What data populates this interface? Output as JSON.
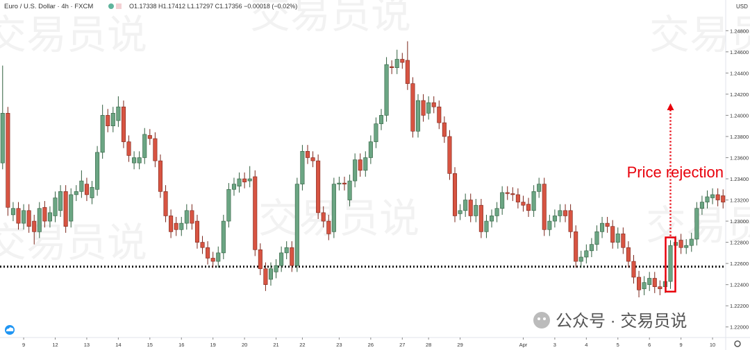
{
  "chart_data": {
    "type": "candlestick",
    "title": "Euro / U.S. Dollar · 4h · FXCM",
    "legend_ohlc": "O1.17338 H1.17412 L1.17297 C1.17356 −0.00018 (−0.02%)",
    "axis_currency": "USD",
    "watermark": "交易员说",
    "footer": "公众号 · 交易员说",
    "up_color": "#6ba583",
    "down_color": "#d75442",
    "xlim": [
      -0.5,
      137.5
    ],
    "xticks": [
      {
        "value": 4,
        "label": "9"
      },
      {
        "value": 10,
        "label": "12"
      },
      {
        "value": 16,
        "label": "13"
      },
      {
        "value": 22,
        "label": "14"
      },
      {
        "value": 28,
        "label": "15"
      },
      {
        "value": 34,
        "label": "16"
      },
      {
        "value": 40,
        "label": "19"
      },
      {
        "value": 46,
        "label": "20"
      },
      {
        "value": 52,
        "label": "21"
      },
      {
        "value": 57,
        "label": "22"
      },
      {
        "value": 64,
        "label": "23"
      },
      {
        "value": 70,
        "label": "26"
      },
      {
        "value": 76,
        "label": "27"
      },
      {
        "value": 81,
        "label": "28"
      },
      {
        "value": 87,
        "label": "29"
      },
      {
        "value": 99,
        "label": "Apr"
      },
      {
        "value": 105,
        "label": "3"
      },
      {
        "value": 111,
        "label": "4"
      },
      {
        "value": 117,
        "label": "5"
      },
      {
        "value": 123,
        "label": "6"
      },
      {
        "value": 129,
        "label": "9"
      },
      {
        "value": 135,
        "label": "10"
      }
    ],
    "ylim": [
      1.219,
      1.2509
    ],
    "yticks": [
      {
        "value": 1.248,
        "label": "1.24800"
      },
      {
        "value": 1.246,
        "label": "1.24600"
      },
      {
        "value": 1.244,
        "label": "1.24400"
      },
      {
        "value": 1.242,
        "label": "1.24200"
      },
      {
        "value": 1.24,
        "label": "1.24000"
      },
      {
        "value": 1.238,
        "label": "1.23800"
      },
      {
        "value": 1.236,
        "label": "1.23600"
      },
      {
        "value": 1.234,
        "label": "1.23400"
      },
      {
        "value": 1.232,
        "label": "1.23200"
      },
      {
        "value": 1.23,
        "label": "1.23000"
      },
      {
        "value": 1.228,
        "label": "1.22800"
      },
      {
        "value": 1.226,
        "label": "1.22600"
      },
      {
        "value": 1.224,
        "label": "1.22400"
      },
      {
        "value": 1.222,
        "label": "1.22200"
      },
      {
        "value": 1.22,
        "label": "1.22000"
      }
    ],
    "support_level": 1.2257,
    "annotation": {
      "text": "Price rejection",
      "x": 127
    },
    "open": [
      1.2355,
      1.2402,
      1.2306,
      1.2312,
      1.2298,
      1.231,
      1.23,
      1.229,
      1.2313,
      1.23,
      1.2305,
      1.231,
      1.2328,
      1.23,
      1.2325,
      1.2328,
      1.2335,
      1.2322,
      1.233,
      1.2365,
      1.24,
      1.239,
      1.2395,
      1.2408,
      1.2375,
      1.2355,
      1.2355,
      1.236,
      1.2381,
      1.2378,
      1.2357,
      1.2328,
      1.2305,
      1.2298,
      1.2292,
      1.2298,
      1.231,
      1.23,
      1.228,
      1.2275,
      1.2265,
      1.2262,
      1.227,
      1.23,
      1.233,
      1.2333,
      1.234,
      1.2338,
      1.2342,
      1.2273,
      1.2255,
      1.2245,
      1.2252,
      1.2258,
      1.227,
      1.2275,
      1.2258,
      1.2335,
      1.2366,
      1.236,
      1.2357,
      1.2308,
      1.23,
      1.229,
      1.2335,
      1.2336,
      1.232,
      1.2338,
      1.2358,
      1.2348,
      1.236,
      1.2375,
      1.2392,
      1.24,
      1.2446,
      1.2445,
      1.2453,
      1.2452,
      1.243,
      1.2385,
      1.2414,
      1.2402,
      1.2412,
      1.2408,
      1.2393,
      1.238,
      1.2345,
      1.2307,
      1.231,
      1.232,
      1.2305,
      1.2315,
      1.229,
      1.23,
      1.2305,
      1.2312,
      1.2327,
      1.2326,
      1.2325,
      1.2318,
      1.2316,
      1.231,
      1.2328,
      1.2335,
      1.2292,
      1.23,
      1.2305,
      1.231,
      1.231,
      1.229,
      1.2262,
      1.2266,
      1.2272,
      1.2278,
      1.229,
      1.2298,
      1.2295,
      1.228,
      1.2288,
      1.2275,
      1.2262,
      1.2247,
      1.2236,
      1.224,
      1.2246,
      1.2238,
      1.2238,
      1.2243,
      1.2277,
      1.2282,
      1.2275,
      1.2277,
      1.2283,
      1.2312,
      1.2318,
      1.2322,
      1.2325,
      1.2324
    ],
    "high": [
      1.2447,
      1.2408,
      1.2318,
      1.2318,
      1.2316,
      1.2316,
      1.2306,
      1.2318,
      1.2319,
      1.2314,
      1.2328,
      1.2334,
      1.2334,
      1.2331,
      1.2334,
      1.2348,
      1.2341,
      1.2338,
      1.2371,
      1.241,
      1.2406,
      1.2408,
      1.2418,
      1.2414,
      1.2381,
      1.2366,
      1.2366,
      1.2388,
      1.2387,
      1.2384,
      1.2363,
      1.2334,
      1.2311,
      1.2304,
      1.2304,
      1.2316,
      1.2316,
      1.2306,
      1.2286,
      1.2281,
      1.2271,
      1.2276,
      1.2306,
      1.2336,
      1.2341,
      1.2346,
      1.2346,
      1.2352,
      1.2348,
      1.2279,
      1.2261,
      1.2261,
      1.2264,
      1.2276,
      1.2281,
      1.2281,
      1.2341,
      1.2372,
      1.2372,
      1.2366,
      1.2363,
      1.2314,
      1.2306,
      1.2341,
      1.2342,
      1.2342,
      1.2344,
      1.2364,
      1.2364,
      1.2366,
      1.2381,
      1.2398,
      1.2406,
      1.2455,
      1.2452,
      1.2462,
      1.2459,
      1.247,
      1.2436,
      1.242,
      1.242,
      1.2418,
      1.2418,
      1.2414,
      1.2399,
      1.2386,
      1.2351,
      1.2316,
      1.2326,
      1.2326,
      1.2321,
      1.2321,
      1.2306,
      1.2311,
      1.2318,
      1.2333,
      1.2333,
      1.2332,
      1.2331,
      1.2324,
      1.2322,
      1.2334,
      1.2341,
      1.2341,
      1.2306,
      1.2311,
      1.2316,
      1.2316,
      1.2316,
      1.2296,
      1.2272,
      1.2278,
      1.2284,
      1.2296,
      1.2304,
      1.2304,
      1.2301,
      1.2294,
      1.2294,
      1.2281,
      1.2268,
      1.2253,
      1.2248,
      1.2252,
      1.2252,
      1.2244,
      1.2249,
      1.2282,
      1.2286,
      1.2288,
      1.2283,
      1.2289,
      1.2318,
      1.2324,
      1.2329,
      1.2331,
      1.2331,
      1.233
    ],
    "low": [
      1.2349,
      1.2305,
      1.23,
      1.2292,
      1.2292,
      1.2289,
      1.2278,
      1.2284,
      1.2294,
      1.2294,
      1.2299,
      1.2304,
      1.2289,
      1.2294,
      1.2319,
      1.2322,
      1.2319,
      1.2316,
      1.2324,
      1.2359,
      1.2384,
      1.2384,
      1.2389,
      1.2369,
      1.2356,
      1.2349,
      1.2349,
      1.2354,
      1.2372,
      1.2351,
      1.2322,
      1.2299,
      1.2284,
      1.2286,
      1.2286,
      1.2292,
      1.2292,
      1.2274,
      1.2269,
      1.2259,
      1.2256,
      1.2256,
      1.2264,
      1.2294,
      1.2324,
      1.2327,
      1.2331,
      1.2332,
      1.2267,
      1.2249,
      1.2234,
      1.2239,
      1.2246,
      1.2252,
      1.2264,
      1.2252,
      1.2252,
      1.2329,
      1.2354,
      1.2351,
      1.2302,
      1.2294,
      1.2282,
      1.2284,
      1.2329,
      1.2329,
      1.2314,
      1.2332,
      1.2342,
      1.2342,
      1.2354,
      1.2369,
      1.2386,
      1.2394,
      1.2439,
      1.2439,
      1.2444,
      1.2424,
      1.2379,
      1.2379,
      1.2394,
      1.2396,
      1.2402,
      1.2387,
      1.2374,
      1.2339,
      1.2299,
      1.2301,
      1.2304,
      1.2299,
      1.2299,
      1.2284,
      1.2284,
      1.2294,
      1.2299,
      1.2306,
      1.232,
      1.2319,
      1.2312,
      1.2309,
      1.2304,
      1.2304,
      1.2322,
      1.2286,
      1.2286,
      1.2294,
      1.2299,
      1.2299,
      1.2284,
      1.2256,
      1.2256,
      1.226,
      1.2266,
      1.2272,
      1.2284,
      1.2289,
      1.2274,
      1.2274,
      1.2269,
      1.2256,
      1.2241,
      1.2228,
      1.223,
      1.2234,
      1.2232,
      1.223,
      1.2232,
      1.2236,
      1.2271,
      1.2269,
      1.2269,
      1.2271,
      1.2277,
      1.2306,
      1.2312,
      1.2316,
      1.2314,
      1.2312
    ],
    "close": [
      1.2402,
      1.2313,
      1.2312,
      1.2298,
      1.231,
      1.2295,
      1.229,
      1.2312,
      1.23,
      1.2308,
      1.2322,
      1.2328,
      1.2295,
      1.2325,
      1.2328,
      1.2338,
      1.2325,
      1.2332,
      1.2365,
      1.24,
      1.239,
      1.2402,
      1.2408,
      1.2375,
      1.2362,
      1.236,
      1.236,
      1.2382,
      1.2378,
      1.2357,
      1.2328,
      1.2305,
      1.229,
      1.2292,
      1.2298,
      1.231,
      1.2298,
      1.228,
      1.2275,
      1.2265,
      1.2262,
      1.227,
      1.23,
      1.233,
      1.2335,
      1.234,
      1.2337,
      1.234,
      1.2273,
      1.2255,
      1.224,
      1.2255,
      1.2258,
      1.227,
      1.2275,
      1.2258,
      1.2335,
      1.2366,
      1.236,
      1.2357,
      1.2308,
      1.23,
      1.2288,
      1.2335,
      1.2336,
      1.2335,
      1.2338,
      1.2358,
      1.2348,
      1.236,
      1.2375,
      1.2392,
      1.24,
      1.2448,
      1.2445,
      1.2453,
      1.245,
      1.243,
      1.2385,
      1.2414,
      1.24,
      1.2412,
      1.2408,
      1.2393,
      1.238,
      1.2345,
      1.2305,
      1.231,
      1.232,
      1.2305,
      1.2315,
      1.229,
      1.23,
      1.2305,
      1.2312,
      1.2327,
      1.2326,
      1.2325,
      1.2318,
      1.2315,
      1.231,
      1.2328,
      1.2335,
      1.2292,
      1.23,
      1.2305,
      1.231,
      1.2305,
      1.229,
      1.2262,
      1.2266,
      1.2272,
      1.2278,
      1.229,
      1.2298,
      1.2295,
      1.228,
      1.2288,
      1.2275,
      1.2262,
      1.2247,
      1.2235,
      1.2242,
      1.2246,
      1.2238,
      1.2236,
      1.2243,
      1.2277,
      1.228,
      1.2275,
      1.2277,
      1.2283,
      1.2312,
      1.2318,
      1.2323,
      1.2325,
      1.232,
      1.2318
    ]
  }
}
